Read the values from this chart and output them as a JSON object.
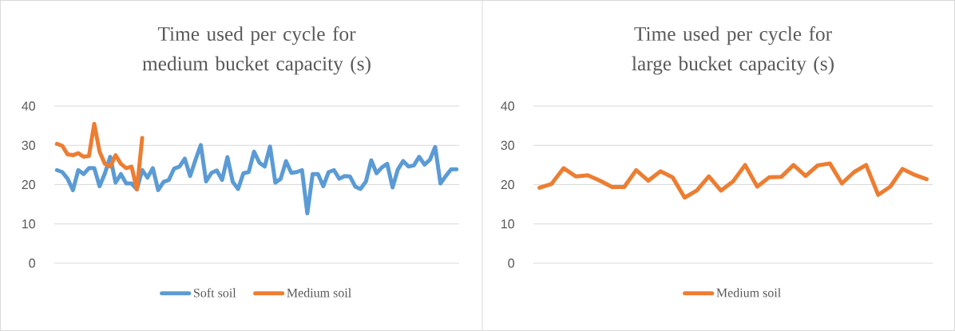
{
  "chart_data": [
    {
      "type": "line",
      "title": "Time used per cycle for medium bucket capacity (s)",
      "categories": [
        null,
        null,
        null,
        null,
        null,
        null,
        null,
        null,
        null,
        null,
        null,
        null,
        null,
        null,
        null,
        null,
        null,
        null,
        null,
        null,
        null,
        null,
        null,
        null,
        null,
        null,
        null,
        null,
        null,
        null,
        null,
        null,
        null,
        null,
        null,
        null,
        null,
        null,
        null,
        null,
        null,
        null,
        null,
        null,
        null,
        null,
        null,
        null,
        null,
        null,
        null,
        null,
        null,
        null,
        null,
        null,
        null,
        null,
        null,
        null,
        null,
        null,
        null,
        null,
        null,
        null,
        null,
        null,
        null,
        null,
        null,
        null,
        null,
        null,
        null,
        null
      ],
      "series": [
        {
          "name": "Soft soil",
          "color": "#5b9bd5",
          "values": [
            23.7,
            23.2,
            21.5,
            18.6,
            23.7,
            22.7,
            24.2,
            24.2,
            19.6,
            22.9,
            27.1,
            20.5,
            22.7,
            20.3,
            20.3,
            18.8,
            23.7,
            21.8,
            24.2,
            18.6,
            20.7,
            21.2,
            24.1,
            24.6,
            26.6,
            22.2,
            26.3,
            30.1,
            20.8,
            23.0,
            23.6,
            21.2,
            27.0,
            20.7,
            18.9,
            22.9,
            23.2,
            28.4,
            25.6,
            24.6,
            29.7,
            20.5,
            21.5,
            26.0,
            23.0,
            23.2,
            23.7,
            12.7,
            22.7,
            22.7,
            19.6,
            23.2,
            23.7,
            21.5,
            22.2,
            22.1,
            19.5,
            18.9,
            20.8,
            26.2,
            22.9,
            24.4,
            25.3,
            19.3,
            23.9,
            26.0,
            24.6,
            24.9,
            27.1,
            25.1,
            26.3,
            29.6,
            20.3,
            22.2,
            23.9,
            23.9
          ]
        },
        {
          "name": "Medium soil",
          "color": "#ed7d31",
          "values": [
            30.4,
            29.9,
            27.7,
            27.5,
            28.0,
            27.1,
            27.3,
            35.5,
            28.4,
            25.3,
            24.6,
            27.5,
            25.3,
            24.2,
            24.6,
            18.8,
            31.9,
            null,
            null,
            null,
            null,
            null,
            null,
            null,
            null,
            null,
            null,
            null,
            null,
            null,
            null,
            null,
            null,
            null,
            null,
            null,
            null,
            null,
            null,
            null,
            null,
            null,
            null,
            null,
            null,
            null,
            null,
            null,
            null,
            null,
            null,
            null,
            null,
            null,
            null,
            null,
            null,
            null,
            null,
            null,
            null,
            null,
            null,
            null,
            null,
            null,
            null,
            null,
            null,
            null,
            null,
            null,
            null,
            null,
            null,
            null
          ]
        }
      ],
      "ylim": [
        0,
        40
      ],
      "yticks": [
        0,
        10,
        20,
        30,
        40
      ],
      "grid": "y",
      "legend": "bottom"
    },
    {
      "type": "line",
      "title": "Time used per cycle for large bucket capacity (s)",
      "categories": [
        null,
        null,
        null,
        null,
        null,
        null,
        null,
        null,
        null,
        null,
        null,
        null,
        null,
        null,
        null,
        null,
        null,
        null,
        null,
        null,
        null,
        null,
        null,
        null,
        null,
        null,
        null,
        null,
        null,
        null,
        null,
        null,
        null
      ],
      "series": [
        {
          "name": "Medium soil",
          "color": "#ed7d31",
          "values": [
            19.2,
            20.2,
            24.2,
            22.1,
            22.4,
            21.0,
            19.4,
            19.4,
            23.7,
            21.0,
            23.4,
            21.9,
            16.7,
            18.5,
            22.1,
            18.5,
            20.8,
            25.0,
            19.5,
            21.9,
            22.0,
            25.0,
            22.2,
            24.9,
            25.4,
            20.3,
            23.2,
            25.0,
            17.4,
            19.5,
            24.0,
            22.5,
            21.4
          ]
        }
      ],
      "ylim": [
        0,
        40
      ],
      "yticks": [
        0,
        10,
        20,
        30,
        40
      ],
      "grid": "y",
      "legend": "bottom"
    }
  ]
}
